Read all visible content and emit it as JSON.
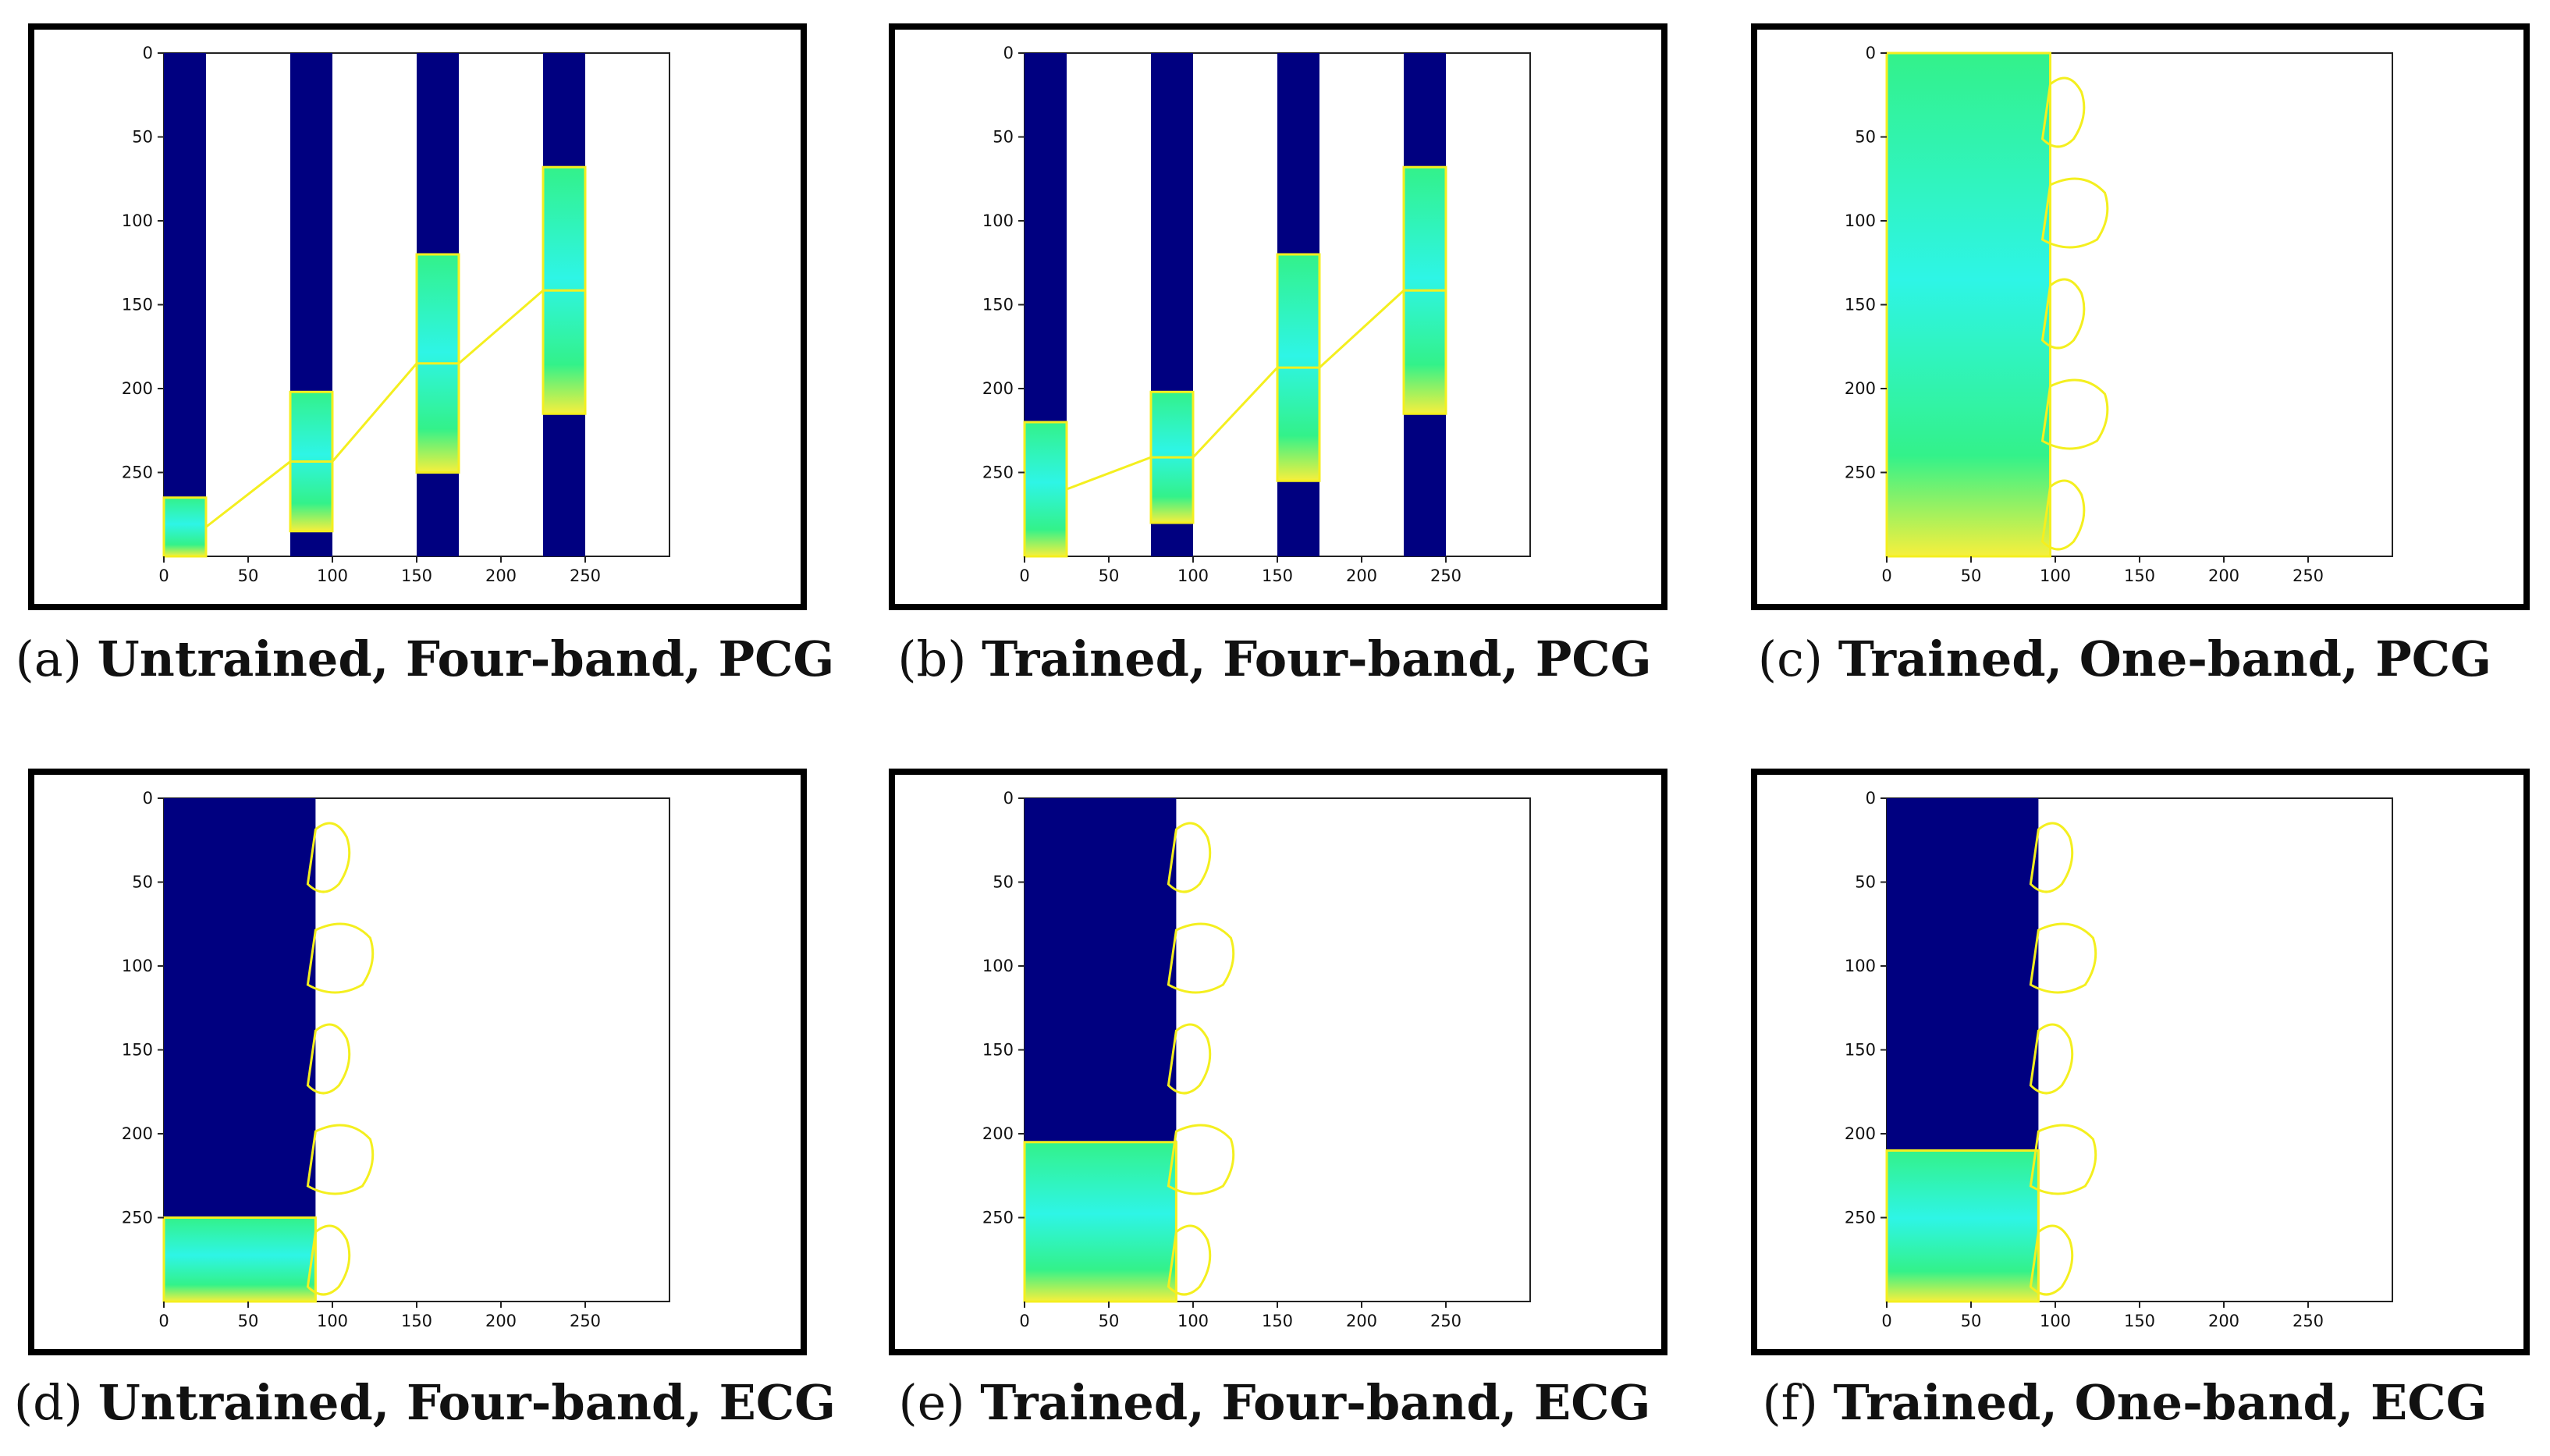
{
  "figure": {
    "panels": [
      {
        "id": "a",
        "letter_label": "(a)",
        "caption": "Untrained, Four-band, PCG",
        "chart_data": {
          "type": "heatmap",
          "title": "",
          "xlabel": "",
          "ylabel": "",
          "x_ticks": [
            "0",
            "50",
            "100",
            "150",
            "200",
            "250"
          ],
          "y_ticks": [
            "0",
            "50",
            "100",
            "150",
            "200",
            "250"
          ],
          "xlim": [
            0,
            300
          ],
          "ylim": [
            300,
            0
          ],
          "bands": [
            {
              "x": [
                0,
                25
              ],
              "highlight_y": [
                265,
                300
              ]
            },
            {
              "x": [
                75,
                100
              ],
              "highlight_y": [
                202,
                285
              ]
            },
            {
              "x": [
                150,
                175
              ],
              "highlight_y": [
                120,
                250
              ]
            },
            {
              "x": [
                225,
                250
              ],
              "highlight_y": [
                68,
                215
              ]
            }
          ],
          "contour": "explanation outline connecting band segments"
        }
      },
      {
        "id": "b",
        "letter_label": "(b)",
        "caption": "Trained, Four-band, PCG",
        "chart_data": {
          "type": "heatmap",
          "title": "",
          "xlabel": "",
          "ylabel": "",
          "x_ticks": [
            "0",
            "50",
            "100",
            "150",
            "200",
            "250"
          ],
          "y_ticks": [
            "0",
            "50",
            "100",
            "150",
            "200",
            "250"
          ],
          "xlim": [
            0,
            300
          ],
          "ylim": [
            300,
            0
          ],
          "bands": [
            {
              "x": [
                0,
                25
              ],
              "highlight_y": [
                220,
                300
              ]
            },
            {
              "x": [
                75,
                100
              ],
              "highlight_y": [
                202,
                280
              ]
            },
            {
              "x": [
                150,
                175
              ],
              "highlight_y": [
                120,
                255
              ]
            },
            {
              "x": [
                225,
                250
              ],
              "highlight_y": [
                68,
                215
              ]
            }
          ],
          "contour": "explanation outline connecting band segments"
        }
      },
      {
        "id": "c",
        "letter_label": "(c)",
        "caption": "Trained, One-band, PCG",
        "chart_data": {
          "type": "heatmap",
          "title": "",
          "xlabel": "",
          "ylabel": "",
          "x_ticks": [
            "0",
            "50",
            "100",
            "150",
            "200",
            "250"
          ],
          "y_ticks": [
            "0",
            "50",
            "100",
            "150",
            "200",
            "250"
          ],
          "xlim": [
            0,
            300
          ],
          "ylim": [
            300,
            0
          ],
          "bands": [
            {
              "x": [
                0,
                97
              ],
              "highlight_y": [
                0,
                300
              ]
            }
          ],
          "contour": "superpixel outlines inside band"
        }
      },
      {
        "id": "d",
        "letter_label": "(d)",
        "caption": "Untrained, Four-band, ECG",
        "chart_data": {
          "type": "heatmap",
          "title": "",
          "xlabel": "",
          "ylabel": "",
          "x_ticks": [
            "0",
            "50",
            "100",
            "150",
            "200",
            "250"
          ],
          "y_ticks": [
            "0",
            "50",
            "100",
            "150",
            "200",
            "250"
          ],
          "xlim": [
            0,
            300
          ],
          "ylim": [
            300,
            0
          ],
          "bands": [
            {
              "x": [
                0,
                90
              ],
              "highlight_y": [
                250,
                300
              ]
            }
          ],
          "contour": "superpixel outlines right of band"
        }
      },
      {
        "id": "e",
        "letter_label": "(e)",
        "caption": "Trained, Four-band, ECG",
        "chart_data": {
          "type": "heatmap",
          "title": "",
          "xlabel": "",
          "ylabel": "",
          "x_ticks": [
            "0",
            "50",
            "100",
            "150",
            "200",
            "250"
          ],
          "y_ticks": [
            "0",
            "50",
            "100",
            "150",
            "200",
            "250"
          ],
          "xlim": [
            0,
            300
          ],
          "ylim": [
            300,
            0
          ],
          "bands": [
            {
              "x": [
                0,
                90
              ],
              "highlight_y": [
                205,
                300
              ]
            }
          ],
          "contour": "superpixel outlines right of band"
        }
      },
      {
        "id": "f",
        "letter_label": "(f)",
        "caption": "Trained, One-band, ECG",
        "chart_data": {
          "type": "heatmap",
          "title": "",
          "xlabel": "",
          "ylabel": "",
          "x_ticks": [
            "0",
            "50",
            "100",
            "150",
            "200",
            "250"
          ],
          "y_ticks": [
            "0",
            "50",
            "100",
            "150",
            "200",
            "250"
          ],
          "xlim": [
            0,
            300
          ],
          "ylim": [
            300,
            0
          ],
          "bands": [
            {
              "x": [
                0,
                90
              ],
              "highlight_y": [
                210,
                300
              ]
            }
          ],
          "contour": "superpixel outlines right of band"
        }
      }
    ]
  },
  "colors": {
    "band_base": "#000080",
    "highlight_green": "#33f28a",
    "highlight_cyan": "#2ef5e6",
    "highlight_magenta": "#f0146e",
    "highlight_yellow": "#f7f03c",
    "contour": "#f4ef1f",
    "frame": "#000000"
  }
}
